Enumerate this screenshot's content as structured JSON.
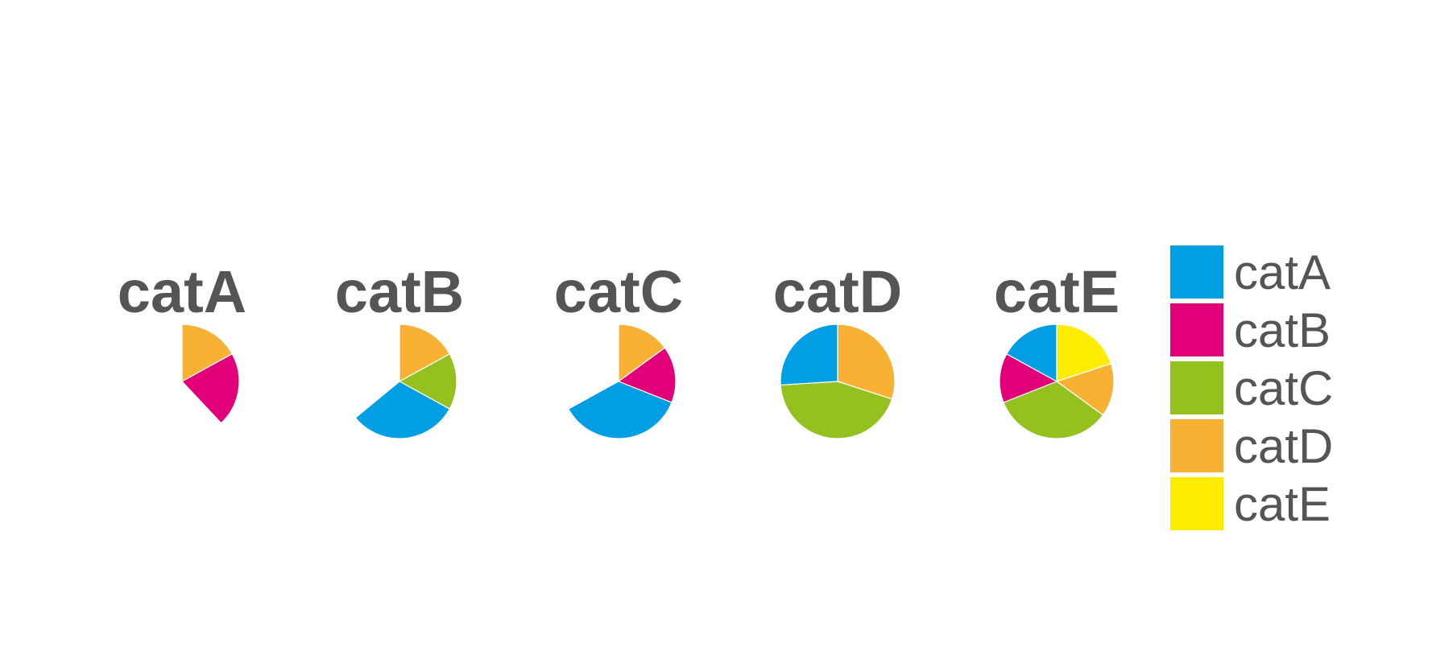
{
  "chart_data": {
    "type": "pie",
    "facet_titles": [
      "catA",
      "catB",
      "catC",
      "catD",
      "catE"
    ],
    "categories": [
      "catA",
      "catB",
      "catC",
      "catD",
      "catE"
    ],
    "colors": {
      "catA": "#009FE3",
      "catB": "#E2007A",
      "catC": "#95C11F",
      "catD": "#F8B133",
      "catE": "#FFED00"
    },
    "note_scale": "each facet is a polar bar chart with full circle = 100 units; slices start at 12 o'clock going clockwise",
    "panels": [
      {
        "title": "catA",
        "slices": [
          {
            "category": "catD",
            "value": 17
          },
          {
            "category": "catB",
            "value": 21
          }
        ]
      },
      {
        "title": "catB",
        "slices": [
          {
            "category": "catD",
            "value": 17
          },
          {
            "category": "catC",
            "value": 16
          },
          {
            "category": "catA",
            "value": 31
          }
        ]
      },
      {
        "title": "catC",
        "slices": [
          {
            "category": "catD",
            "value": 15
          },
          {
            "category": "catB",
            "value": 16
          },
          {
            "category": "catA",
            "value": 36
          }
        ]
      },
      {
        "title": "catD",
        "slices": [
          {
            "category": "catD",
            "value": 30
          },
          {
            "category": "catC",
            "value": 44
          },
          {
            "category": "catA",
            "value": 26
          }
        ]
      },
      {
        "title": "catE",
        "slices": [
          {
            "category": "catE",
            "value": 20
          },
          {
            "category": "catD",
            "value": 15
          },
          {
            "category": "catC",
            "value": 34
          },
          {
            "category": "catB",
            "value": 14
          },
          {
            "category": "catA",
            "value": 17
          }
        ]
      }
    ],
    "legend": {
      "position": "right",
      "entries": [
        "catA",
        "catB",
        "catC",
        "catD",
        "catE"
      ]
    },
    "title": "",
    "xlabel": "",
    "ylabel": "",
    "grid": false
  }
}
